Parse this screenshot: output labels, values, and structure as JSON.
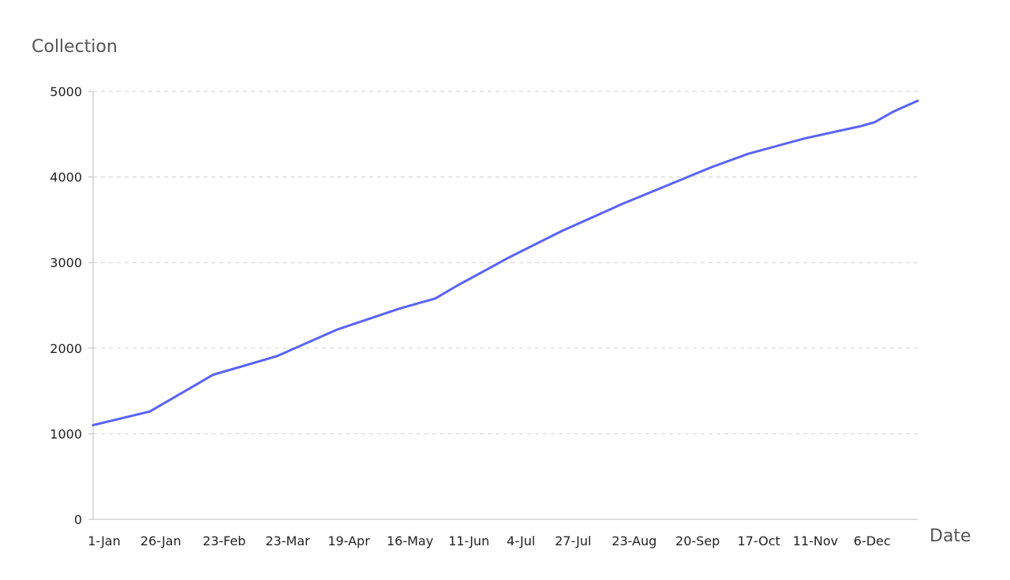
{
  "chart_data": {
    "type": "line",
    "title": "",
    "ylabel": "Collection",
    "xlabel": "Date",
    "ylim": [
      0,
      5000
    ],
    "yticks": [
      0,
      1000,
      2000,
      3000,
      4000,
      5000
    ],
    "xlim": [
      "1-Jan",
      "31-Dec"
    ],
    "xticks": [
      "1-Jan",
      "26-Jan",
      "23-Feb",
      "23-Mar",
      "19-Apr",
      "16-May",
      "11-Jun",
      "4-Jul",
      "27-Jul",
      "23-Aug",
      "20-Sep",
      "17-Oct",
      "11-Nov",
      "6-Dec"
    ],
    "grid": "horizontal dashed",
    "legend": "none",
    "line_color": "#5b63f5",
    "series": [
      {
        "x": [
          "1-Jan",
          "26-Jan",
          "23-Feb",
          "23-Mar",
          "19-Apr",
          "16-May",
          "1-Jun",
          "11-Jun",
          "4-Jul",
          "27-Jul",
          "23-Aug",
          "20-Sep",
          "1-Oct",
          "17-Oct",
          "11-Nov",
          "6-Dec",
          "12-Dec",
          "20-Dec",
          "25-Dec",
          "31-Dec"
        ],
        "values": [
          1100,
          1260,
          1690,
          1905,
          2220,
          2460,
          2580,
          2735,
          3065,
          3370,
          3690,
          3995,
          4115,
          4270,
          4450,
          4595,
          4640,
          4760,
          4820,
          4890
        ]
      }
    ]
  }
}
